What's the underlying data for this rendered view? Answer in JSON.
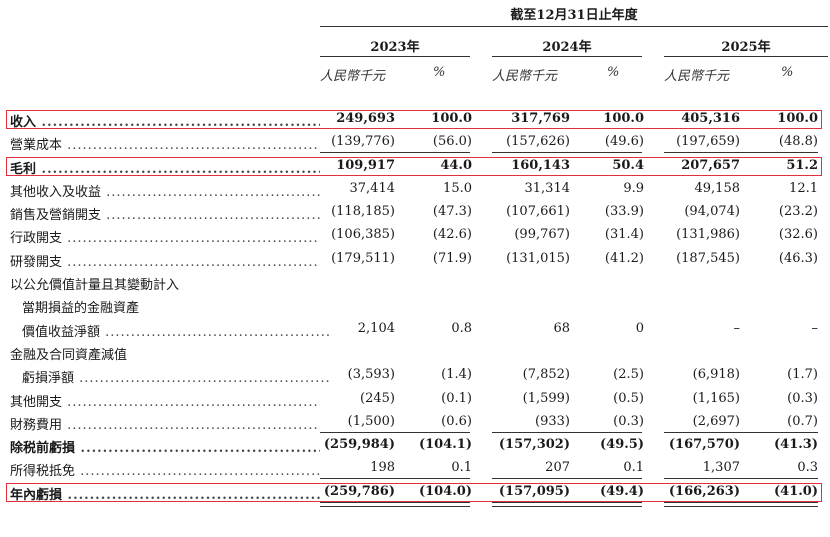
{
  "header": {
    "period": "截至12月31日止年度",
    "years": [
      "2023年",
      "2024年",
      "2025年"
    ],
    "unit_rmb": "人民幣千元",
    "unit_pct": "%"
  },
  "rows": [
    {
      "label": "收入",
      "bold": true,
      "highlight": true,
      "values": [
        "249,693",
        "100.0",
        "317,769",
        "100.0",
        "405,316",
        "100.0"
      ]
    },
    {
      "label": "營業成本",
      "values": [
        "(139,776)",
        "(56.0)",
        "(157,626)",
        "(49.6)",
        "(197,659)",
        "(48.8)"
      ],
      "rule_below": "single"
    },
    {
      "label": "毛利",
      "bold": true,
      "highlight": true,
      "values": [
        "109,917",
        "44.0",
        "160,143",
        "50.4",
        "207,657",
        "51.2"
      ]
    },
    {
      "label": "其他收入及收益",
      "values": [
        "37,414",
        "15.0",
        "31,314",
        "9.9",
        "49,158",
        "12.1"
      ]
    },
    {
      "label": "銷售及營銷開支",
      "values": [
        "(118,185)",
        "(47.3)",
        "(107,661)",
        "(33.9)",
        "(94,074)",
        "(23.2)"
      ]
    },
    {
      "label": "行政開支",
      "values": [
        "(106,385)",
        "(42.6)",
        "(99,767)",
        "(31.4)",
        "(131,986)",
        "(32.6)"
      ]
    },
    {
      "label": "研發開支",
      "values": [
        "(179,511)",
        "(71.9)",
        "(131,015)",
        "(41.2)",
        "(187,545)",
        "(46.3)"
      ]
    },
    {
      "label": "以公允價值計量且其變動計入",
      "nodots": true,
      "values": [
        "",
        "",
        "",
        "",
        "",
        ""
      ]
    },
    {
      "label": "當期損益的金融資產",
      "indent": true,
      "nodots": true,
      "values": [
        "",
        "",
        "",
        "",
        "",
        ""
      ]
    },
    {
      "label": "價值收益淨額",
      "indent": true,
      "values": [
        "2,104",
        "0.8",
        "68",
        "0",
        "–",
        "–"
      ]
    },
    {
      "label": "金融及合同資產減值",
      "nodots": true,
      "values": [
        "",
        "",
        "",
        "",
        "",
        ""
      ]
    },
    {
      "label": "虧損淨額",
      "indent": true,
      "values": [
        "(3,593)",
        "(1.4)",
        "(7,852)",
        "(2.5)",
        "(6,918)",
        "(1.7)"
      ]
    },
    {
      "label": "其他開支",
      "values": [
        "(245)",
        "(0.1)",
        "(1,599)",
        "(0.5)",
        "(1,165)",
        "(0.3)"
      ]
    },
    {
      "label": "財務費用",
      "values": [
        "(1,500)",
        "(0.6)",
        "(933)",
        "(0.3)",
        "(2,697)",
        "(0.7)"
      ],
      "rule_below": "single"
    },
    {
      "label": "除税前虧損",
      "bold": true,
      "values": [
        "(259,984)",
        "(104.1)",
        "(157,302)",
        "(49.5)",
        "(167,570)",
        "(41.3)"
      ]
    },
    {
      "label": "所得税抵免",
      "values": [
        "198",
        "0.1",
        "207",
        "0.1",
        "1,307",
        "0.3"
      ],
      "rule_below": "single"
    },
    {
      "label": "年內虧損",
      "bold": true,
      "highlight": true,
      "values": [
        "(259,786)",
        "(104.0)",
        "(157,095)",
        "(49.4)",
        "(166,263)",
        "(41.0)"
      ],
      "rule_below": "double"
    }
  ]
}
